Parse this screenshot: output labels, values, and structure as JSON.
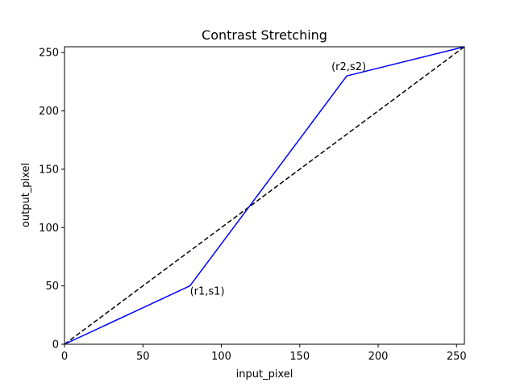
{
  "chart_data": {
    "type": "line",
    "title": "Contrast Stretching",
    "xlabel": "input_pixel",
    "ylabel": "output_pixel",
    "xlim": [
      0,
      255
    ],
    "ylim": [
      0,
      255
    ],
    "xticks": [
      0,
      50,
      100,
      150,
      200,
      250
    ],
    "yticks": [
      0,
      50,
      100,
      150,
      200,
      250
    ],
    "grid": false,
    "series": [
      {
        "style": "solid",
        "color": "#0000ff",
        "x": [
          0,
          80,
          180,
          255
        ],
        "y": [
          0,
          50,
          230,
          255
        ]
      },
      {
        "style": "dashed",
        "color": "#000000",
        "x": [
          0,
          255
        ],
        "y": [
          0,
          255
        ]
      }
    ],
    "annotations": [
      {
        "text": "(r1,s1)",
        "x": 80,
        "y": 50
      },
      {
        "text": "(r2,s2)",
        "x": 180,
        "y": 230
      }
    ]
  }
}
